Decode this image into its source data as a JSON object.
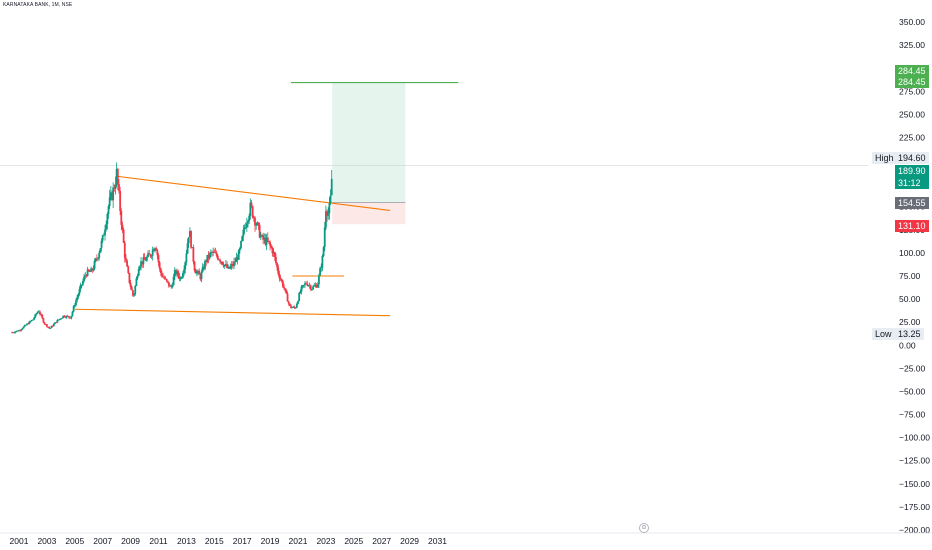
{
  "chart_title": "KARNATAKA BANK, 1M, NSE",
  "chart_data": {
    "type": "candlestick",
    "interval": "1M",
    "ylim": [
      -200,
      350
    ],
    "y_ticks": [
      "350.00",
      "325.00",
      "300.00",
      "275.00",
      "250.00",
      "225.00",
      "175.00",
      "150.00",
      "125.00",
      "100.00",
      "75.00",
      "50.00",
      "25.00",
      "0.00",
      "−25.00",
      "−50.00",
      "−75.00",
      "−100.00",
      "−125.00",
      "−150.00",
      "−175.00",
      "−200.00"
    ],
    "x_ticks": [
      "2001",
      "2003",
      "2005",
      "2007",
      "2009",
      "2011",
      "2013",
      "2015",
      "2017",
      "2019",
      "2021",
      "2023",
      "2025",
      "2027",
      "2029",
      "2031"
    ],
    "xlim": [
      2000.5,
      2032.5
    ],
    "price_path": [
      [
        2000.5,
        14
      ],
      [
        2001.0,
        16
      ],
      [
        2001.5,
        22
      ],
      [
        2002.0,
        28
      ],
      [
        2002.4,
        38
      ],
      [
        2002.8,
        24
      ],
      [
        2003.2,
        18
      ],
      [
        2003.7,
        26
      ],
      [
        2004.2,
        32
      ],
      [
        2004.7,
        30
      ],
      [
        2005.0,
        45
      ],
      [
        2005.4,
        62
      ],
      [
        2005.8,
        78
      ],
      [
        2006.2,
        80
      ],
      [
        2006.6,
        95
      ],
      [
        2007.0,
        115
      ],
      [
        2007.4,
        150
      ],
      [
        2007.8,
        170
      ],
      [
        2008.0,
        186
      ],
      [
        2008.3,
        140
      ],
      [
        2008.6,
        95
      ],
      [
        2008.9,
        70
      ],
      [
        2009.2,
        52
      ],
      [
        2009.6,
        88
      ],
      [
        2010.0,
        92
      ],
      [
        2010.4,
        98
      ],
      [
        2010.8,
        110
      ],
      [
        2011.1,
        80
      ],
      [
        2011.5,
        70
      ],
      [
        2011.9,
        62
      ],
      [
        2012.2,
        80
      ],
      [
        2012.6,
        72
      ],
      [
        2012.9,
        90
      ],
      [
        2013.2,
        125
      ],
      [
        2013.6,
        82
      ],
      [
        2014.0,
        74
      ],
      [
        2014.4,
        92
      ],
      [
        2014.8,
        100
      ],
      [
        2015.2,
        97
      ],
      [
        2015.6,
        90
      ],
      [
        2016.0,
        82
      ],
      [
        2016.4,
        88
      ],
      [
        2016.8,
        100
      ],
      [
        2017.2,
        130
      ],
      [
        2017.6,
        150
      ],
      [
        2018.0,
        132
      ],
      [
        2018.4,
        115
      ],
      [
        2018.8,
        112
      ],
      [
        2019.2,
        102
      ],
      [
        2019.6,
        78
      ],
      [
        2020.0,
        62
      ],
      [
        2020.4,
        42
      ],
      [
        2020.8,
        40
      ],
      [
        2021.2,
        60
      ],
      [
        2021.6,
        68
      ],
      [
        2022.0,
        62
      ],
      [
        2022.4,
        66
      ],
      [
        2022.8,
        98
      ],
      [
        2023.0,
        150
      ],
      [
        2023.2,
        142
      ],
      [
        2023.35,
        160
      ],
      [
        2023.45,
        190
      ]
    ],
    "high": {
      "label": "High",
      "value": "194.60"
    },
    "low": {
      "label": "Low",
      "value": "13.25"
    },
    "last_price": {
      "value": "189.90",
      "countdown": "31:12"
    },
    "position": {
      "target": "284.45",
      "entry": "154.55",
      "stop": "131.10"
    },
    "trendlines": [
      {
        "name": "upper-trendline",
        "from": [
          2008.0,
          183
        ],
        "to": [
          2027.6,
          146
        ],
        "color": "#f57c00"
      },
      {
        "name": "lower-trendline",
        "from": [
          2005.0,
          39
        ],
        "to": [
          2027.6,
          32
        ],
        "color": "#f57c00"
      },
      {
        "name": "support-line",
        "from": [
          2020.6,
          75
        ],
        "to": [
          2024.3,
          75
        ],
        "color": "#f57c00"
      },
      {
        "name": "target-line",
        "from": [
          2020.5,
          284.45
        ],
        "to": [
          2032.5,
          284.45
        ],
        "color": "#4caf50"
      }
    ],
    "colors": {
      "up": "#089981",
      "down": "#f23645",
      "target_zone": "#e6f4ee",
      "stop_zone": "#fde8e8",
      "grid": "#f0f3fa",
      "axis_text": "#131722"
    }
  }
}
